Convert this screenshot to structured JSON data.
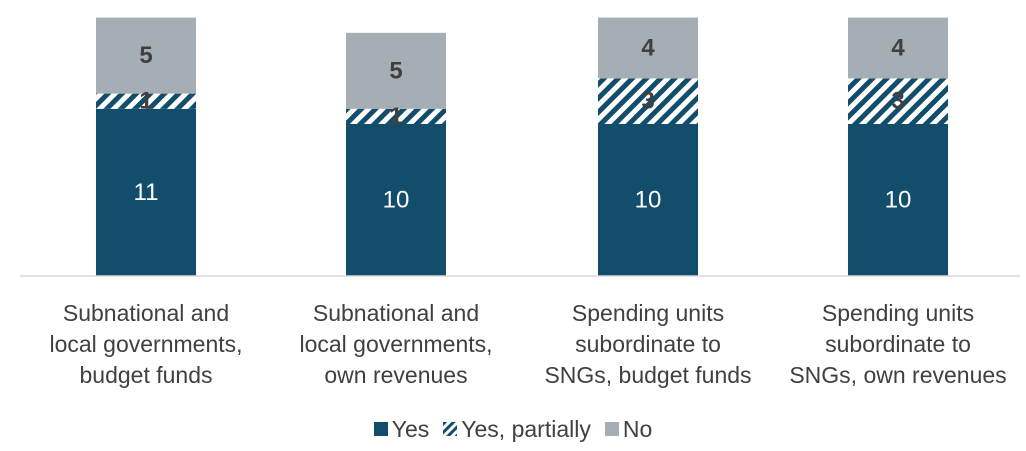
{
  "chart_data": {
    "type": "bar",
    "stacked": true,
    "categories": [
      "Subnational and\nlocal governments,\nbudget funds",
      "Subnational and\nlocal governments,\nown revenues",
      "Spending units\nsubordinate to\nSNGs, budget funds",
      "Spending units\nsubordinate to\nSNGs, own revenues"
    ],
    "series": [
      {
        "name": "Yes",
        "values": [
          11,
          10,
          10,
          10
        ],
        "color": "#124e6b",
        "pattern": "solid"
      },
      {
        "name": "Yes, partially",
        "values": [
          1,
          1,
          3,
          3
        ],
        "color": "#124e6b",
        "pattern": "diagonal-hatch"
      },
      {
        "name": "No",
        "values": [
          5,
          5,
          4,
          4
        ],
        "color": "#a6aeb5",
        "pattern": "solid"
      }
    ],
    "ylim": [
      0,
      17
    ],
    "grid": false,
    "legend_position": "bottom",
    "data_labels": true
  }
}
